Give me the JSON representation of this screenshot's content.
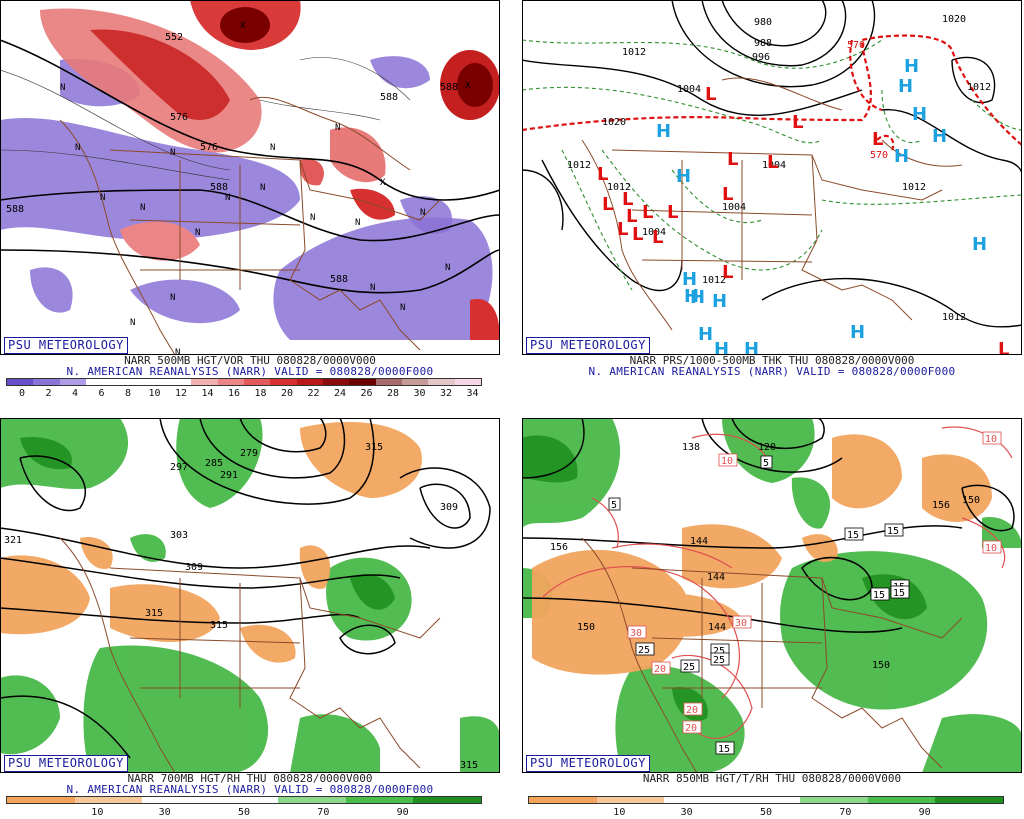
{
  "panels": {
    "p500": {
      "logo": "PSU METEOROLOGY",
      "line1": "NARR 500MB HGT/VOR THU 080828/0000V000",
      "line2": "N. AMERICAN REANALYSIS (NARR) VALID = 080828/0000F000",
      "colorbar": {
        "labels": [
          "0",
          "2",
          "4",
          "6",
          "8",
          "10",
          "12",
          "14",
          "16",
          "18",
          "20",
          "22",
          "24",
          "26",
          "28",
          "30",
          "32",
          "34"
        ],
        "colors": [
          "#6a4fc8",
          "#8c73d8",
          "#b09ce6",
          "#ffffff",
          "#ffffff",
          "#ffffff",
          "#ffffff",
          "#f3b0b0",
          "#ec8686",
          "#e25a5a",
          "#d63030",
          "#b81818",
          "#8a0c0c",
          "#6a0000",
          "#a86b6b",
          "#c79a9a",
          "#e4c8c8",
          "#f7d7e7"
        ]
      },
      "contour_labels": [
        "552",
        "576",
        "588",
        "588",
        "588",
        "588",
        "588",
        "576"
      ],
      "markers": [
        "N",
        "N",
        "N",
        "N",
        "N",
        "N",
        "N",
        "N",
        "N",
        "N",
        "N",
        "N",
        "N",
        "N",
        "N",
        "N",
        "N",
        "N",
        "N",
        "X",
        "X",
        "X"
      ]
    },
    "pprs": {
      "logo": "PSU METEOROLOGY",
      "line1": "NARR PRS/1000-500MB THK THU 080828/0000V000",
      "line2": "N. AMERICAN REANALYSIS (NARR) VALID = 080828/0000F000",
      "contour_labels": [
        "980",
        "988",
        "996",
        "1004",
        "1012",
        "1020",
        "1020",
        "1012",
        "1012",
        "1012",
        "1012",
        "1004",
        "1004",
        "1012",
        "1012",
        "1004",
        "570",
        "570"
      ],
      "highs": [
        "H",
        "H",
        "H",
        "H",
        "H",
        "H",
        "H",
        "H",
        "H",
        "H",
        "H",
        "H",
        "H",
        "H",
        "H",
        "H"
      ],
      "lows": [
        "L",
        "L",
        "L",
        "L",
        "L",
        "L",
        "L",
        "L",
        "L",
        "L",
        "L",
        "L",
        "L",
        "L",
        "L",
        "L",
        "L"
      ]
    },
    "p700": {
      "logo": "PSU METEOROLOGY",
      "line1": "NARR 700MB HGT/RH THU 080828/0000V000",
      "line2": "N. AMERICAN REANALYSIS (NARR) VALID = 080828/0000F000",
      "colorbar": {
        "labels": [
          "10",
          "30",
          "50",
          "70",
          "90"
        ],
        "colors": [
          "#f3a35c",
          "#f7c899",
          "#ffffff",
          "#ffffff",
          "#8ed88e",
          "#4bbd4b",
          "#1f8f1f"
        ]
      },
      "contour_labels": [
        "321",
        "297",
        "303",
        "309",
        "315",
        "315",
        "309",
        "315",
        "279",
        "285",
        "291",
        "315"
      ]
    },
    "p850": {
      "logo": "PSU METEOROLOGY",
      "line1": "NARR 850MB HGT/T/RH THU 080828/0000V000",
      "line2": "",
      "colorbar": {
        "labels": [
          "10",
          "30",
          "50",
          "70",
          "90"
        ],
        "colors": [
          "#f3a35c",
          "#f7c899",
          "#ffffff",
          "#ffffff",
          "#8ed88e",
          "#4bbd4b",
          "#1f8f1f"
        ]
      },
      "contour_labels": [
        "138",
        "120",
        "156",
        "144",
        "144",
        "150",
        "144",
        "150",
        "156",
        "150"
      ],
      "boxed_labels": [
        "5",
        "5",
        "10",
        "10",
        "10",
        "15",
        "15",
        "15",
        "15",
        "30",
        "30",
        "25",
        "25",
        "25",
        "25",
        "20",
        "20",
        "20",
        "15",
        "15"
      ]
    }
  }
}
